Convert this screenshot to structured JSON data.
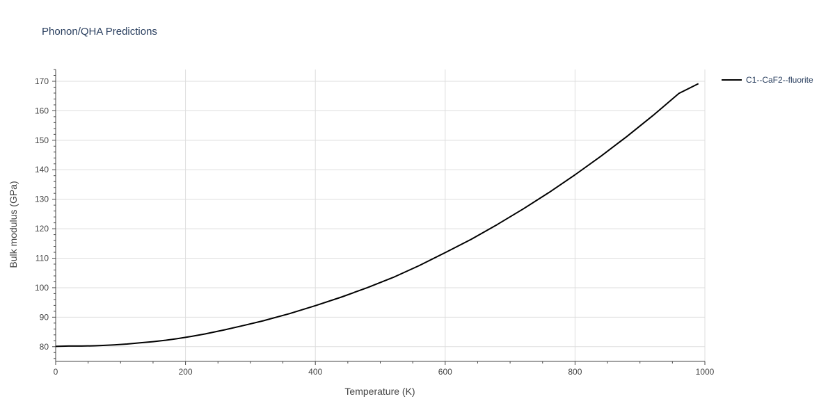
{
  "chart_data": {
    "type": "line",
    "title": "Phonon/QHA Predictions",
    "xlabel": "Temperature (K)",
    "ylabel": "Bulk modulus (GPa)",
    "xlim": [
      0,
      1000
    ],
    "ylim": [
      75,
      174
    ],
    "x_ticks": [
      0,
      200,
      400,
      600,
      800,
      1000
    ],
    "y_ticks": [
      80,
      90,
      100,
      110,
      120,
      130,
      140,
      150,
      160,
      170
    ],
    "grid": true,
    "legend_position": "top-right, outside plot",
    "series": [
      {
        "name": "C1--CaF2--fluorite",
        "color": "#000000",
        "x": [
          0,
          20,
          40,
          60,
          70,
          90,
          110,
          130,
          150,
          170,
          190,
          210,
          230,
          260,
          290,
          320,
          360,
          400,
          440,
          480,
          520,
          560,
          600,
          640,
          680,
          720,
          760,
          800,
          840,
          880,
          920,
          960,
          990
        ],
        "y": [
          80.1,
          80.2,
          80.2,
          80.3,
          80.4,
          80.6,
          80.9,
          81.3,
          81.7,
          82.2,
          82.8,
          83.5,
          84.3,
          85.7,
          87.2,
          88.8,
          91.2,
          93.9,
          96.8,
          100.0,
          103.5,
          107.5,
          111.9,
          116.4,
          121.4,
          126.7,
          132.3,
          138.3,
          144.6,
          151.3,
          158.4,
          165.9,
          169.2
        ]
      }
    ]
  }
}
